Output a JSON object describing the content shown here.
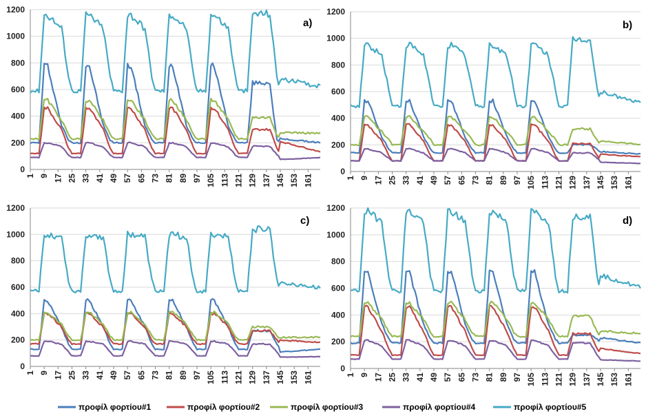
{
  "chart_data": [
    {
      "type": "line",
      "panel_label": "a)",
      "ylim": [
        0,
        1200
      ],
      "yticks": [
        0,
        200,
        400,
        600,
        800,
        1000,
        1200
      ],
      "x_range": [
        1,
        168
      ],
      "xticks": [
        1,
        9,
        17,
        25,
        33,
        41,
        49,
        57,
        65,
        73,
        81,
        89,
        97,
        105,
        113,
        121,
        129,
        137,
        145,
        153,
        161
      ],
      "series_params": [
        {
          "base": 200,
          "mid": 330,
          "tail": 220,
          "peak": 780,
          "sat": 650,
          "weekend": 230,
          "end": 200
        },
        {
          "base": 120,
          "mid": 300,
          "tail": 160,
          "peak": 460,
          "sat": 300,
          "weekend": 210,
          "end": 130
        },
        {
          "base": 230,
          "mid": 370,
          "tail": 260,
          "peak": 520,
          "sat": 390,
          "weekend": 280,
          "end": 270
        },
        {
          "base": 90,
          "mid": 170,
          "tail": 110,
          "peak": 200,
          "sat": 175,
          "weekend": 75,
          "end": 90
        },
        {
          "base": 590,
          "mid": 1060,
          "tail": 700,
          "peak": 1160,
          "sat": 1170,
          "weekend": 680,
          "end": 620
        }
      ]
    },
    {
      "type": "line",
      "panel_label": "b)",
      "ylim": [
        0,
        1200
      ],
      "yticks": [
        0,
        200,
        400,
        600,
        800,
        1000,
        1200
      ],
      "x_range": [
        1,
        168
      ],
      "xticks": [
        1,
        9,
        17,
        25,
        33,
        41,
        49,
        57,
        65,
        73,
        81,
        89,
        97,
        105,
        113,
        121,
        129,
        137,
        145,
        153,
        161
      ],
      "series_params": [
        {
          "base": 140,
          "mid": 260,
          "tail": 170,
          "peak": 530,
          "sat": 200,
          "weekend": 150,
          "end": 130
        },
        {
          "base": 80,
          "mid": 230,
          "tail": 120,
          "peak": 350,
          "sat": 210,
          "weekend": 130,
          "end": 110
        },
        {
          "base": 200,
          "mid": 300,
          "tail": 240,
          "peak": 410,
          "sat": 320,
          "weekend": 230,
          "end": 200
        },
        {
          "base": 80,
          "mid": 140,
          "tail": 100,
          "peak": 170,
          "sat": 140,
          "weekend": 70,
          "end": 60
        },
        {
          "base": 490,
          "mid": 870,
          "tail": 620,
          "peak": 950,
          "sat": 990,
          "weekend": 600,
          "end": 510
        }
      ]
    },
    {
      "type": "line",
      "panel_label": "c)",
      "ylim": [
        0,
        1200
      ],
      "yticks": [
        0,
        200,
        400,
        600,
        800,
        1000,
        1200
      ],
      "x_range": [
        1,
        168
      ],
      "xticks": [
        1,
        9,
        17,
        25,
        33,
        41,
        49,
        57,
        65,
        73,
        81,
        89,
        97,
        105,
        113,
        121,
        129,
        137,
        145,
        153,
        161
      ],
      "series_params": [
        {
          "base": 130,
          "mid": 300,
          "tail": 170,
          "peak": 500,
          "sat": 270,
          "weekend": 110,
          "end": 130
        },
        {
          "base": 170,
          "mid": 300,
          "tail": 200,
          "peak": 400,
          "sat": 270,
          "weekend": 200,
          "end": 180
        },
        {
          "base": 200,
          "mid": 320,
          "tail": 230,
          "peak": 410,
          "sat": 300,
          "weekend": 220,
          "end": 220
        },
        {
          "base": 80,
          "mid": 170,
          "tail": 110,
          "peak": 190,
          "sat": 170,
          "weekend": 70,
          "end": 75
        },
        {
          "base": 570,
          "mid": 980,
          "tail": 650,
          "peak": 1000,
          "sat": 1040,
          "weekend": 640,
          "end": 590
        }
      ]
    },
    {
      "type": "line",
      "panel_label": "d)",
      "ylim": [
        0,
        1200
      ],
      "yticks": [
        0,
        200,
        400,
        600,
        800,
        1000,
        1200
      ],
      "x_range": [
        1,
        168
      ],
      "xticks": [
        1,
        9,
        17,
        25,
        33,
        41,
        49,
        57,
        65,
        73,
        81,
        89,
        97,
        105,
        113,
        121,
        129,
        137,
        145,
        153,
        161
      ],
      "series_params": [
        {
          "base": 190,
          "mid": 330,
          "tail": 220,
          "peak": 720,
          "sat": 250,
          "weekend": 230,
          "end": 190
        },
        {
          "base": 100,
          "mid": 280,
          "tail": 150,
          "peak": 460,
          "sat": 260,
          "weekend": 150,
          "end": 110
        },
        {
          "base": 240,
          "mid": 370,
          "tail": 270,
          "peak": 490,
          "sat": 390,
          "weekend": 280,
          "end": 260
        },
        {
          "base": 70,
          "mid": 170,
          "tail": 100,
          "peak": 210,
          "sat": 190,
          "weekend": 65,
          "end": 55
        },
        {
          "base": 580,
          "mid": 1100,
          "tail": 700,
          "peak": 1170,
          "sat": 1140,
          "weekend": 700,
          "end": 600
        }
      ]
    }
  ],
  "legend": [
    {
      "label": "προφίλ φορτίου#1",
      "color": "#4a7ebb"
    },
    {
      "label": "προφίλ φορτίου#2",
      "color": "#be4b48"
    },
    {
      "label": "προφίλ φορτίου#3",
      "color": "#98b954"
    },
    {
      "label": "προφίλ φορτίου#4",
      "color": "#7d60a0"
    },
    {
      "label": "προφίλ φορτίου#5",
      "color": "#46aac5"
    }
  ]
}
